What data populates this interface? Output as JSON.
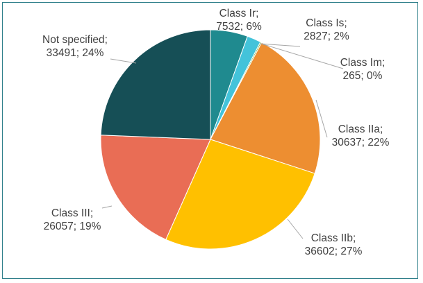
{
  "chart_data": {
    "type": "pie",
    "title": "",
    "series": [
      {
        "values": [
          {
            "name": "Class Ir",
            "value": 7532,
            "pct": "6%",
            "color": "#1f8a8f",
            "label_lines": [
              "Class Ir;",
              "7532; 6%"
            ]
          },
          {
            "name": "Class Is",
            "value": 2827,
            "pct": "2%",
            "color": "#43c3da",
            "label_lines": [
              "Class Is;",
              "2827; 2%"
            ]
          },
          {
            "name": "Class Im",
            "value": 265,
            "pct": "0%",
            "color": "#7ab648",
            "label_lines": [
              "Class Im;",
              "265; 0%"
            ]
          },
          {
            "name": "Class IIa",
            "value": 30637,
            "pct": "22%",
            "color": "#ed8e31",
            "label_lines": [
              "Class IIa;",
              "30637; 22%"
            ]
          },
          {
            "name": "Class IIb",
            "value": 36602,
            "pct": "27%",
            "color": "#ffc000",
            "label_lines": [
              "Class IIb;",
              "36602; 27%"
            ]
          },
          {
            "name": "Class III",
            "value": 26057,
            "pct": "19%",
            "color": "#e96d55",
            "label_lines": [
              "Class III;",
              "26057; 19%"
            ]
          },
          {
            "name": "Not specified",
            "value": 33491,
            "pct": "24%",
            "color": "#164f56",
            "label_lines": [
              "Not specified;",
              "33491; 24%"
            ]
          }
        ]
      }
    ],
    "start_angle": "12 o'clock",
    "direction": "clockwise",
    "legend": "none"
  }
}
